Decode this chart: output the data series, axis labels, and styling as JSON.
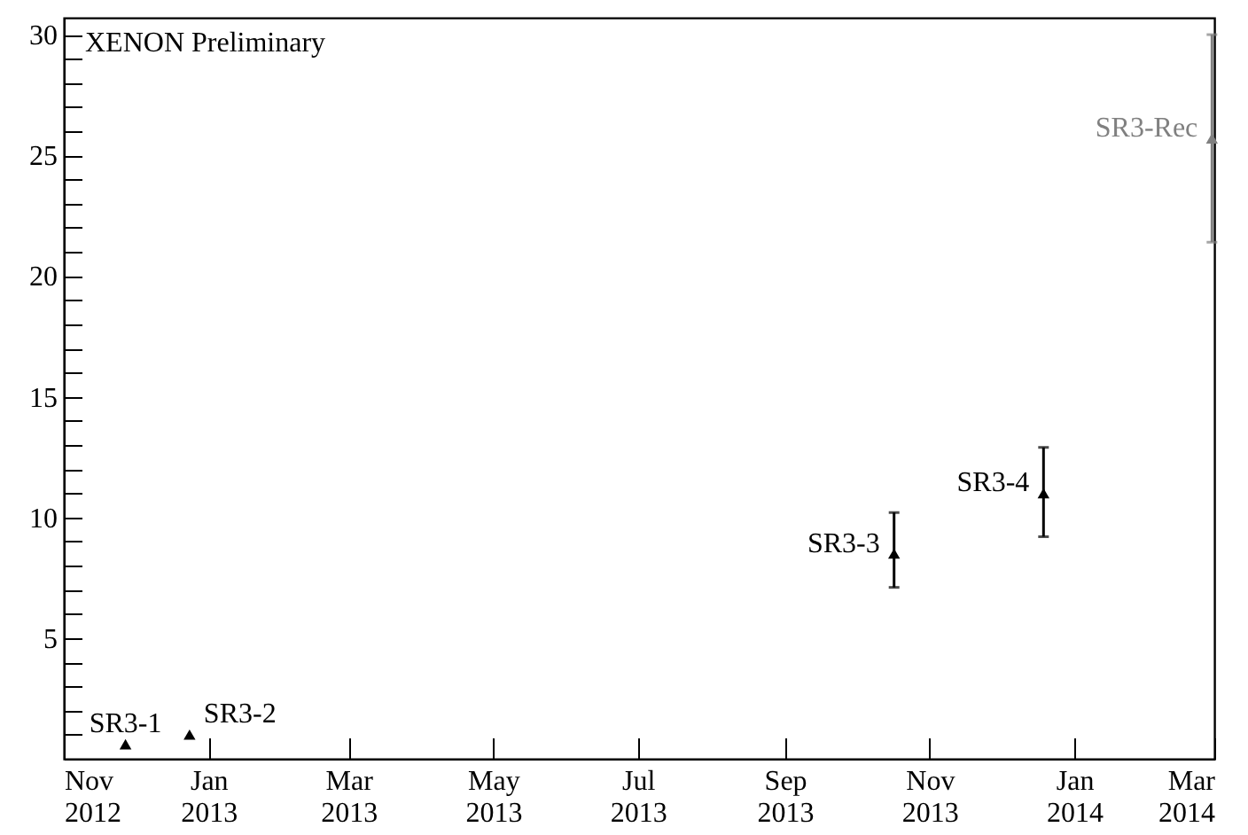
{
  "chart_data": {
    "type": "scatter",
    "title": "XENON Preliminary",
    "marker": "triangle",
    "grid": false,
    "xlim": [
      "2012-11-01",
      "2014-03-01"
    ],
    "xticks": [
      {
        "value": "2012-11",
        "label": "Nov\n2012"
      },
      {
        "value": "2013-01",
        "label": "Jan\n2013"
      },
      {
        "value": "2013-03",
        "label": "Mar\n2013"
      },
      {
        "value": "2013-05",
        "label": "May\n2013"
      },
      {
        "value": "2013-07",
        "label": "Jul\n2013"
      },
      {
        "value": "2013-09",
        "label": "Sep\n2013"
      },
      {
        "value": "2013-11",
        "label": "Nov\n2013"
      },
      {
        "value": "2014-01",
        "label": "Jan\n2014"
      },
      {
        "value": "2014-03",
        "label": "Mar\n2014"
      }
    ],
    "ylim": [
      0,
      30.7
    ],
    "yticks": [
      {
        "value": 1,
        "label": null
      },
      {
        "value": 2,
        "label": null
      },
      {
        "value": 3,
        "label": null
      },
      {
        "value": 4,
        "label": null
      },
      5,
      {
        "value": 6,
        "label": null
      },
      {
        "value": 7,
        "label": null
      },
      {
        "value": 8,
        "label": null
      },
      {
        "value": 9,
        "label": null
      },
      10,
      {
        "value": 11,
        "label": null
      },
      {
        "value": 12,
        "label": null
      },
      {
        "value": 13,
        "label": null
      },
      {
        "value": 14,
        "label": null
      },
      15,
      {
        "value": 16,
        "label": null
      },
      {
        "value": 17,
        "label": null
      },
      {
        "value": 18,
        "label": null
      },
      {
        "value": 19,
        "label": null
      },
      20,
      {
        "value": 21,
        "label": null
      },
      {
        "value": 22,
        "label": null
      },
      {
        "value": 23,
        "label": null
      },
      {
        "value": 24,
        "label": null
      },
      25,
      {
        "value": 26,
        "label": null
      },
      {
        "value": 27,
        "label": null
      },
      {
        "value": 28,
        "label": null
      },
      {
        "value": 29,
        "label": null
      },
      30
    ],
    "series": [
      {
        "name": "SR3-1",
        "color": "#000000",
        "x": [
          "2012-11-27"
        ],
        "values": [
          0.6
        ],
        "errors": [
          null
        ]
      },
      {
        "name": "SR3-2",
        "color": "#000000",
        "x": [
          "2012-12-24"
        ],
        "values": [
          1.0
        ],
        "errors": [
          null
        ]
      },
      {
        "name": "SR3-3",
        "color": "#000000",
        "x": [
          "2013-10-17"
        ],
        "values": [
          8.5
        ],
        "errors": [
          [
            7.1,
            10.2
          ]
        ]
      },
      {
        "name": "SR3-4",
        "color": "#000000",
        "x": [
          "2013-12-19"
        ],
        "values": [
          11.0
        ],
        "errors": [
          [
            9.2,
            12.9
          ]
        ]
      },
      {
        "name": "SR3-Rec",
        "color": "#808080",
        "x": [
          "2014-02-28"
        ],
        "values": [
          25.7
        ],
        "errors": [
          [
            21.4,
            30.0
          ]
        ]
      }
    ]
  }
}
